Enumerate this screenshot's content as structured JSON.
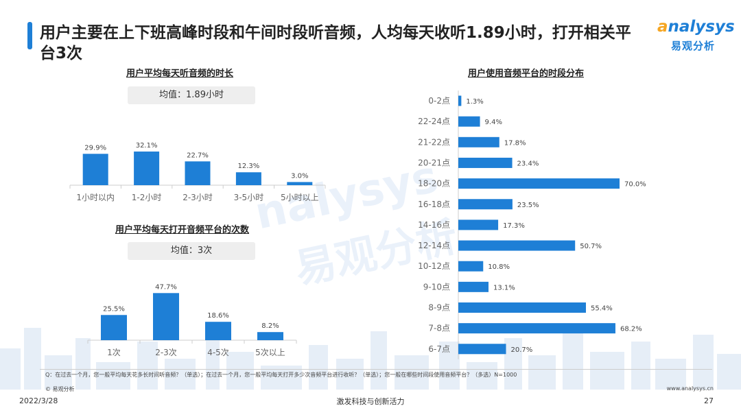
{
  "title": "用户主要在上下班高峰时段和午间时段听音频，人均每天收听1.89小时，打开相关平台3次",
  "logo": {
    "main_prefix": "a",
    "main_rest": "nalysys",
    "sub": "易观分析"
  },
  "watermark": {
    "line1": "nalysys",
    "line2": "易观分析"
  },
  "left_top": {
    "title": "用户平均每天听音频的时长",
    "pill": "均值：1.89小时"
  },
  "left_bottom": {
    "title": "用户平均每天打开音频平台的次数",
    "pill": "均值：3次"
  },
  "right": {
    "title": "用户使用音频平台的时段分布"
  },
  "chart_data": [
    {
      "type": "bar",
      "title": "用户平均每天听音频的时长",
      "categories": [
        "1小时以内",
        "1-2小时",
        "2-3小时",
        "3-5小时",
        "5小时以上"
      ],
      "values": [
        29.9,
        32.1,
        22.7,
        12.3,
        3.0
      ],
      "value_labels": [
        "29.9%",
        "32.1%",
        "22.7%",
        "12.3%",
        "3.0%"
      ],
      "unit": "%",
      "ylim": [
        0,
        35
      ],
      "color": "#1e7fd6"
    },
    {
      "type": "bar",
      "title": "用户平均每天打开音频平台的次数",
      "categories": [
        "1次",
        "2-3次",
        "4-5次",
        "5次以上"
      ],
      "values": [
        25.5,
        47.7,
        18.6,
        8.2
      ],
      "value_labels": [
        "25.5%",
        "47.7%",
        "18.6%",
        "8.2%"
      ],
      "unit": "%",
      "ylim": [
        0,
        50
      ],
      "color": "#1e7fd6"
    },
    {
      "type": "bar",
      "orientation": "horizontal",
      "title": "用户使用音频平台的时段分布",
      "categories": [
        "0-2点",
        "22-24点",
        "21-22点",
        "20-21点",
        "18-20点",
        "16-18点",
        "14-16点",
        "12-14点",
        "10-12点",
        "9-10点",
        "8-9点",
        "7-8点",
        "6-7点"
      ],
      "values": [
        1.3,
        9.4,
        17.8,
        23.4,
        70.0,
        23.5,
        17.3,
        50.7,
        10.8,
        13.1,
        55.4,
        68.2,
        20.7
      ],
      "value_labels": [
        "1.3%",
        "9.4%",
        "17.8%",
        "23.4%",
        "70.0%",
        "23.5%",
        "17.3%",
        "50.7%",
        "10.8%",
        "13.1%",
        "55.4%",
        "68.2%",
        "20.7%"
      ],
      "unit": "%",
      "xlim": [
        0,
        70
      ],
      "color": "#1e7fd6"
    }
  ],
  "footer": {
    "question": "Q：在过去一个月，您一般平均每天花多长时间听音频？（单选）；在过去一个月，您一般平均每天打开多少次音频平台进行收听？（单选）；您一般在哪些时间段使用音频平台？（多选）N=1000",
    "copyright": "© 易观分析",
    "website": "www.analysys.cn",
    "date": "2022/3/28",
    "slogan": "激发科技与创新活力",
    "page": "27"
  }
}
